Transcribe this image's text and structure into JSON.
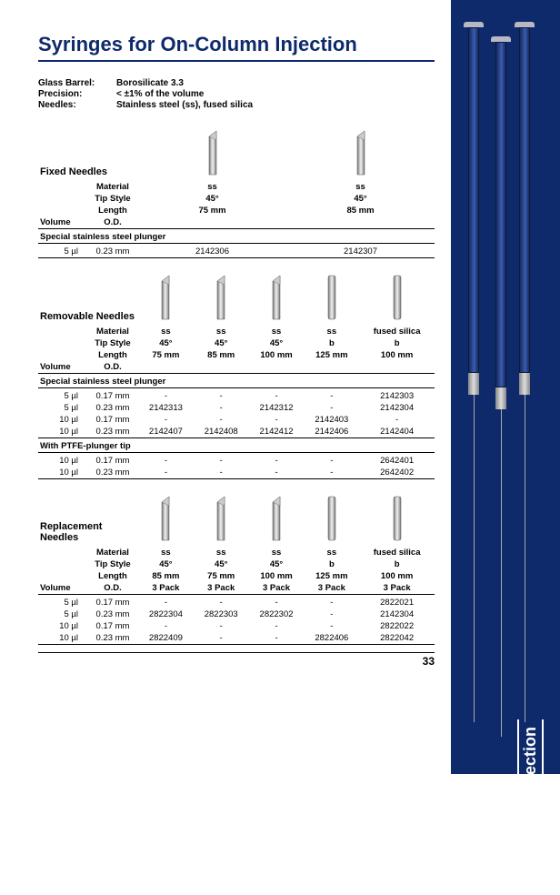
{
  "title": "Syringes for On-Column Injection",
  "side_label": "On-Column Injection",
  "page_number": "33",
  "specs": [
    {
      "label": "Glass Barrel:",
      "value": "Borosilicate 3.3"
    },
    {
      "label": "Precision:",
      "value": "< ±1% of the volume"
    },
    {
      "label": "Needles:",
      "value": "Stainless steel (ss), fused silica"
    }
  ],
  "attr_labels": {
    "material": "Material",
    "tipstyle": "Tip Style",
    "length": "Length",
    "od": "O.D.",
    "volume": "Volume",
    "pack": "3 Pack"
  },
  "sections": [
    {
      "title": "Fixed Needles",
      "cols": [
        {
          "material": "ss",
          "tipstyle": "45°",
          "length": "75 mm",
          "img": "bevel"
        },
        {
          "material": "ss",
          "tipstyle": "45°",
          "length": "85 mm",
          "img": "bevel"
        }
      ],
      "groups": [
        {
          "name": "Special stainless steel plunger",
          "rows": [
            {
              "vol": "5 µl",
              "od": "0.23 mm",
              "parts": [
                "2142306",
                "2142307"
              ]
            }
          ]
        }
      ]
    },
    {
      "title": "Removable Needles",
      "cols": [
        {
          "material": "ss",
          "tipstyle": "45°",
          "length": "75 mm",
          "img": "bevel"
        },
        {
          "material": "ss",
          "tipstyle": "45°",
          "length": "85 mm",
          "img": "bevel"
        },
        {
          "material": "ss",
          "tipstyle": "45°",
          "length": "100 mm",
          "img": "bevel"
        },
        {
          "material": "ss",
          "tipstyle": "b",
          "length": "125 mm",
          "img": "blunt"
        },
        {
          "material": "fused silica",
          "tipstyle": "b",
          "length": "100 mm",
          "img": "blunt"
        }
      ],
      "groups": [
        {
          "name": "Special stainless steel plunger",
          "rows": [
            {
              "vol": "5 µl",
              "od": "0.17 mm",
              "parts": [
                "-",
                "-",
                "-",
                "-",
                "2142303"
              ]
            },
            {
              "vol": "5 µl",
              "od": "0.23 mm",
              "parts": [
                "2142313",
                "-",
                "2142312",
                "-",
                "2142304"
              ]
            },
            {
              "vol": "10 µl",
              "od": "0.17 mm",
              "parts": [
                "-",
                "-",
                "-",
                "2142403",
                "-"
              ]
            },
            {
              "vol": "10 µl",
              "od": "0.23 mm",
              "parts": [
                "2142407",
                "2142408",
                "2142412",
                "2142406",
                "2142404"
              ]
            }
          ]
        },
        {
          "name": "With PTFE-plunger tip",
          "rows": [
            {
              "vol": "10 µl",
              "od": "0.17 mm",
              "parts": [
                "-",
                "-",
                "-",
                "-",
                "2642401"
              ]
            },
            {
              "vol": "10 µl",
              "od": "0.23 mm",
              "parts": [
                "-",
                "-",
                "-",
                "-",
                "2642402"
              ]
            }
          ]
        }
      ]
    },
    {
      "title": "Replacement Needles",
      "pack_row": true,
      "cols": [
        {
          "material": "ss",
          "tipstyle": "45°",
          "length": "85 mm",
          "img": "bevel"
        },
        {
          "material": "ss",
          "tipstyle": "45°",
          "length": "75 mm",
          "img": "bevel"
        },
        {
          "material": "ss",
          "tipstyle": "45°",
          "length": "100 mm",
          "img": "bevel"
        },
        {
          "material": "ss",
          "tipstyle": "b",
          "length": "125 mm",
          "img": "blunt"
        },
        {
          "material": "fused silica",
          "tipstyle": "b",
          "length": "100 mm",
          "img": "blunt"
        }
      ],
      "groups": [
        {
          "name": null,
          "rows": [
            {
              "vol": "5 µl",
              "od": "0.17 mm",
              "parts": [
                "-",
                "-",
                "-",
                "-",
                "2822021"
              ]
            },
            {
              "vol": "5 µl",
              "od": "0.23 mm",
              "parts": [
                "2822304",
                "2822303",
                "2822302",
                "-",
                "2142304"
              ]
            },
            {
              "vol": "10 µl",
              "od": "0.17 mm",
              "parts": [
                "-",
                "-",
                "-",
                "-",
                "2822022"
              ]
            },
            {
              "vol": "10 µl",
              "od": "0.23 mm",
              "parts": [
                "2822409",
                "-",
                "-",
                "2822406",
                "2822042"
              ]
            }
          ]
        }
      ]
    }
  ]
}
